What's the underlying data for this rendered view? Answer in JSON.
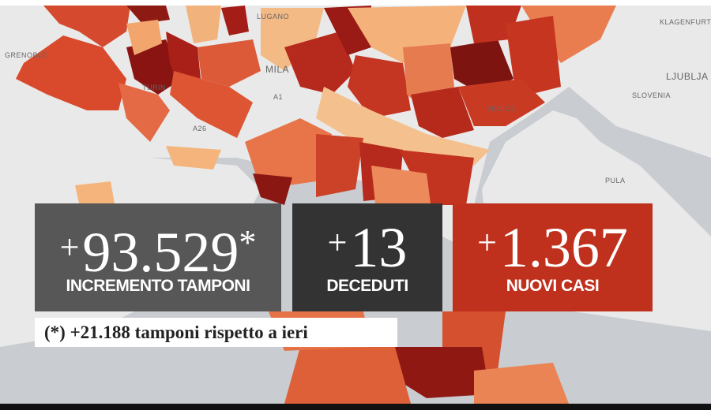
{
  "map_labels": [
    "LUGANO",
    "KLAGENFURT",
    "GRENOBLE",
    "MILA",
    "TURIN",
    "LJUBLJA",
    "SLOVENIA",
    "A1",
    "A26",
    "VENICE",
    "PULA"
  ],
  "stats": [
    {
      "sign": "+",
      "value": "93.529",
      "mark": "*",
      "label": "INCREMENTO TAMPONI"
    },
    {
      "sign": "+",
      "value": "13",
      "label": "DECEDUTI"
    },
    {
      "sign": "+",
      "value": "1.367",
      "label": "NUOVI CASI"
    }
  ],
  "footnote": "(*) +21.188 tamponi rispetto a ieri"
}
